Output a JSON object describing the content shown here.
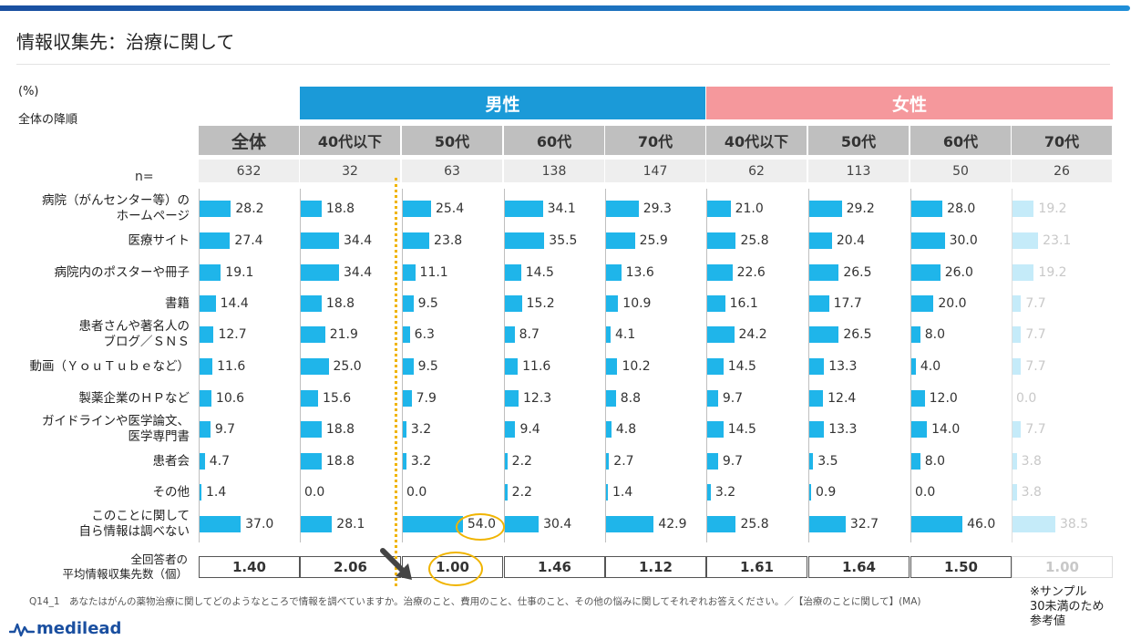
{
  "title": "情報収集先：治療に関して",
  "unit_label": "(%)",
  "sort_note": "全体の降順",
  "n_label": "n=",
  "groups": [
    {
      "label": "男性",
      "color": "#1b9ad8"
    },
    {
      "label": "女性",
      "color": "#f5989c"
    }
  ],
  "columns": [
    "全体",
    "40代以下",
    "50代",
    "60代",
    "70代",
    "40代以下",
    "50代",
    "60代",
    "70代"
  ],
  "n_values": [
    "632",
    "32",
    "63",
    "138",
    "147",
    "62",
    "113",
    "50",
    "26"
  ],
  "avg_label": [
    "全回答者の",
    "平均情報収集先数（個）"
  ],
  "avg_values": [
    "1.40",
    "2.06",
    "1.00",
    "1.46",
    "1.12",
    "1.61",
    "1.64",
    "1.50",
    "1.00"
  ],
  "sample_note": [
    "※サンプル",
    "30未満のため",
    "参考値"
  ],
  "footnote": "Q14_1　あなたはがんの薬物治療に関してどのようなところで情報を調べていますか。治療のこと、費用のこと、仕事のこと、その他の悩みに関してそれぞれお答えください。／【治療のことに関して】(MA)",
  "logo": "medilead",
  "colors": {
    "bar": "#1fb5ea",
    "bar_reference": "#c5ebf9",
    "highlight": "#f0b400"
  },
  "chart_data": {
    "type": "bar",
    "orientation": "horizontal",
    "categories": [
      [
        "病院（がんセンター等）の",
        "ホームページ"
      ],
      [
        "医療サイト"
      ],
      [
        "病院内のポスターや冊子"
      ],
      [
        "書籍"
      ],
      [
        "患者さんや著名人の",
        "ブログ／ＳＮＳ"
      ],
      [
        "動画（ＹｏｕＴｕｂｅなど）"
      ],
      [
        "製薬企業のＨＰなど"
      ],
      [
        "ガイドラインや医学論文、",
        "医学専門書"
      ],
      [
        "患者会"
      ],
      [
        "その他"
      ],
      [
        "このことに関して",
        "自ら情報は調べない"
      ]
    ],
    "xlim": [
      0,
      100
    ],
    "series": [
      {
        "name": "全体",
        "values": [
          28.2,
          27.4,
          19.1,
          14.4,
          12.7,
          11.6,
          10.6,
          9.7,
          4.7,
          1.4,
          37.0
        ],
        "labels": [
          "28.2",
          "27.4",
          "19.1",
          "14.4",
          "12.7",
          "11.6",
          "10.6",
          "9.7",
          "4.7",
          "1.4",
          "37.0"
        ]
      },
      {
        "name": "40代以下",
        "values": [
          18.8,
          34.4,
          34.4,
          18.8,
          21.9,
          25.0,
          15.6,
          18.8,
          18.8,
          0.0,
          28.1
        ],
        "labels": [
          "18.8",
          "34.4",
          "34.4",
          "18.8",
          "21.9",
          "25.0",
          "15.6",
          "18.8",
          "18.8",
          "0.0",
          "28.1"
        ]
      },
      {
        "name": "50代",
        "values": [
          25.4,
          23.8,
          11.1,
          9.5,
          6.3,
          9.5,
          7.9,
          3.2,
          3.2,
          0.0,
          54.0
        ],
        "labels": [
          "25.4",
          "23.8",
          "11.1",
          "9.5",
          "6.3",
          "9.5",
          "7.9",
          "3.2",
          "3.2",
          "0.0",
          "54.0"
        ]
      },
      {
        "name": "60代",
        "values": [
          34.1,
          35.5,
          14.5,
          15.2,
          8.7,
          11.6,
          12.3,
          9.4,
          2.2,
          2.2,
          30.4
        ],
        "labels": [
          "34.1",
          "35.5",
          "14.5",
          "15.2",
          "8.7",
          "11.6",
          "12.3",
          "9.4",
          "2.2",
          "2.2",
          "30.4"
        ]
      },
      {
        "name": "70代",
        "values": [
          29.3,
          25.9,
          13.6,
          10.9,
          4.1,
          10.2,
          8.8,
          4.8,
          2.7,
          1.4,
          42.9
        ],
        "labels": [
          "29.3",
          "25.9",
          "13.6",
          "10.9",
          "4.1",
          "10.2",
          "8.8",
          "4.8",
          "2.7",
          "1.4",
          "42.9"
        ]
      },
      {
        "name": "40代以下",
        "values": [
          21.0,
          25.8,
          22.6,
          16.1,
          24.2,
          14.5,
          9.7,
          14.5,
          9.7,
          3.2,
          25.8
        ],
        "labels": [
          "21.0",
          "25.8",
          "22.6",
          "16.1",
          "24.2",
          "14.5",
          "9.7",
          "14.5",
          "9.7",
          "3.2",
          "25.8"
        ]
      },
      {
        "name": "50代",
        "values": [
          29.2,
          20.4,
          26.5,
          17.7,
          26.5,
          13.3,
          12.4,
          13.3,
          3.5,
          0.9,
          32.7
        ],
        "labels": [
          "29.2",
          "20.4",
          "26.5",
          "17.7",
          "26.5",
          "13.3",
          "12.4",
          "13.3",
          "3.5",
          "0.9",
          "32.7"
        ]
      },
      {
        "name": "60代",
        "values": [
          28.0,
          30.0,
          26.0,
          20.0,
          8.0,
          4.0,
          12.0,
          14.0,
          8.0,
          0.0,
          46.0
        ],
        "labels": [
          "28.0",
          "30.0",
          "26.0",
          "20.0",
          "8.0",
          "4.0",
          "12.0",
          "14.0",
          "8.0",
          "0.0",
          "46.0"
        ]
      },
      {
        "name": "70代",
        "values": [
          19.2,
          23.1,
          19.2,
          7.7,
          7.7,
          7.7,
          0.0,
          7.7,
          3.8,
          3.8,
          38.5
        ],
        "labels": [
          "19.2",
          "23.1",
          "19.2",
          "7.7",
          "7.7",
          "7.7",
          "0.0",
          "7.7",
          "3.8",
          "3.8",
          "38.5"
        ]
      }
    ],
    "highlighted": {
      "column": "50代 (男性)",
      "category_index": 10,
      "value": 54.0,
      "avg": 1.0
    }
  }
}
